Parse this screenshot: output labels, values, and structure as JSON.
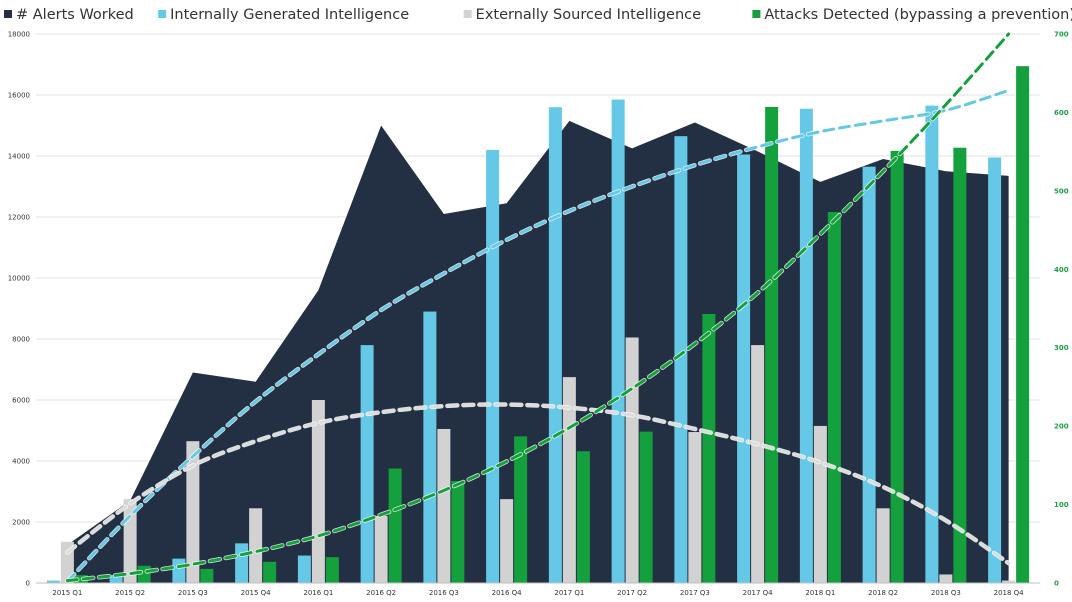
{
  "chart_data": {
    "type": "bar",
    "categories": [
      "2015 Q1",
      "2015 Q2",
      "2015 Q3",
      "2015 Q4",
      "2016 Q1",
      "2016 Q2",
      "2016 Q3",
      "2016 Q4",
      "2017 Q1",
      "2017 Q2",
      "2017 Q3",
      "2017 Q4",
      "2018 Q1",
      "2018 Q2",
      "2018 Q3",
      "2018 Q4"
    ],
    "left_axis": {
      "min": 0,
      "max": 18000,
      "ticks": [
        "0",
        "2000",
        "4000",
        "6000",
        "8000",
        "10000",
        "12000",
        "14000",
        "16000",
        "18000"
      ],
      "gridlines": true
    },
    "right_axis": {
      "min": 0,
      "max": 700,
      "ticks": [
        "0",
        "100",
        "200",
        "300",
        "400",
        "500",
        "600",
        "700"
      ]
    },
    "series": [
      {
        "name": "# Alerts Worked",
        "kind": "area",
        "axis": "left",
        "color": "#233043",
        "values": [
          1250,
          2700,
          6900,
          6600,
          9600,
          15000,
          12100,
          12450,
          15150,
          14250,
          15100,
          14150,
          13150,
          13900,
          13500,
          13350
        ]
      },
      {
        "name": "Internally Generated Intelligence",
        "kind": "bar",
        "axis": "left",
        "color": "#64c8e6",
        "values": [
          80,
          260,
          800,
          1300,
          900,
          7800,
          8900,
          14200,
          15600,
          15850,
          14650,
          14050,
          15550,
          13650,
          15650,
          13950
        ]
      },
      {
        "name": "Externally Sourced Intelligence",
        "kind": "bar",
        "axis": "left",
        "color": "#d2d2d2",
        "values": [
          1350,
          2750,
          4650,
          2450,
          6000,
          2200,
          5050,
          2750,
          6750,
          8050,
          4950,
          7800,
          5150,
          2450,
          280,
          80
        ]
      },
      {
        "name": "Attacks Detected (bypassing a prevention)",
        "kind": "bar",
        "axis": "right",
        "color": "#14a03c",
        "values": [
          10,
          22,
          18,
          27,
          33,
          146,
          130,
          187,
          168,
          193,
          343,
          607,
          473,
          551,
          555,
          659
        ]
      }
    ],
    "trendlines": [
      {
        "series": "Internally Generated Intelligence",
        "axis": "left",
        "color": "#64c8e6",
        "values": [
          50,
          2200,
          4150,
          5950,
          7500,
          8950,
          10150,
          11250,
          12200,
          13000,
          13700,
          14300,
          14800,
          15150,
          15500,
          16150
        ]
      },
      {
        "series": "Externally Sourced Intelligence",
        "axis": "left",
        "color": "#dcdcdc",
        "values": [
          1000,
          2600,
          3850,
          4650,
          5250,
          5600,
          5800,
          5850,
          5750,
          5500,
          5050,
          4550,
          3950,
          3150,
          2050,
          650
        ]
      },
      {
        "series": "Attacks Detected (bypassing a prevention)",
        "axis": "right",
        "color": "#14a03c",
        "values": [
          3,
          12,
          24,
          40,
          60,
          87,
          118,
          155,
          198,
          248,
          305,
          370,
          445,
          525,
          610,
          700
        ]
      }
    ],
    "legend_position": "top"
  },
  "legend": [
    {
      "label": "# Alerts Worked",
      "color": "#233043"
    },
    {
      "label": "Internally Generated Intelligence",
      "color": "#64c8e6"
    },
    {
      "label": "Externally Sourced Intelligence",
      "color": "#d2d2d2"
    },
    {
      "label": "Attacks Detected (bypassing a prevention)",
      "color": "#14a03c"
    }
  ]
}
